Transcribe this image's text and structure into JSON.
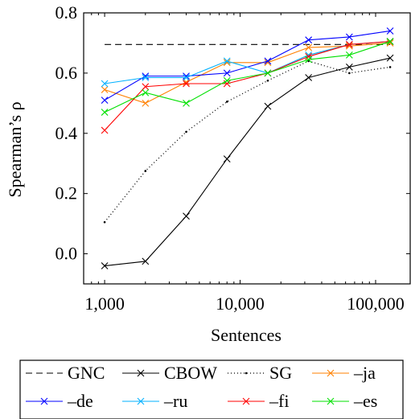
{
  "chart_data": {
    "type": "line",
    "xlabel": "Sentences",
    "ylabel": "Spearman’s ρ",
    "xscale": "log",
    "xlim": [
      700,
      180000
    ],
    "ylim": [
      -0.1,
      0.8
    ],
    "x_ticks": [
      1000,
      10000,
      100000
    ],
    "x_tick_labels": [
      "1,000",
      "10,000",
      "100,000"
    ],
    "y_ticks": [
      0,
      0.2,
      0.4,
      0.6,
      0.8
    ],
    "y_tick_labels": [
      "0.0",
      "0.2",
      "0.4",
      "0.6",
      "0.8"
    ],
    "grid": false,
    "legend_position": "bottom",
    "x": [
      1000,
      2000,
      4000,
      8000,
      16000,
      32000,
      64000,
      128000
    ],
    "series": [
      {
        "name": "GNC",
        "color": "#000000",
        "dash": "dashed",
        "marker": "none",
        "x": [
          1000,
          128000
        ],
        "values": [
          0.695,
          0.695
        ]
      },
      {
        "name": "CBOW",
        "color": "#000000",
        "dash": "solid",
        "marker": "x",
        "values": [
          -0.04,
          -0.025,
          0.125,
          0.315,
          0.49,
          0.585,
          0.62,
          0.65
        ]
      },
      {
        "name": "SG",
        "color": "#000000",
        "dash": "dotted",
        "marker": "dot",
        "values": [
          0.105,
          0.275,
          0.405,
          0.505,
          0.575,
          0.64,
          0.6,
          0.62
        ]
      },
      {
        "name": "–ja",
        "color": "#ff8000",
        "dash": "solid",
        "marker": "x",
        "values": [
          0.545,
          0.5,
          0.57,
          0.635,
          0.635,
          0.685,
          0.69,
          0.7
        ]
      },
      {
        "name": "–de",
        "color": "#0000ff",
        "dash": "solid",
        "marker": "x",
        "values": [
          0.51,
          0.59,
          0.59,
          0.6,
          0.64,
          0.71,
          0.72,
          0.74
        ]
      },
      {
        "name": "–ru",
        "color": "#00b0ff",
        "dash": "solid",
        "marker": "x",
        "values": [
          0.565,
          0.585,
          0.585,
          0.64,
          0.6,
          0.66,
          0.695,
          0.705
        ]
      },
      {
        "name": "–fi",
        "color": "#ff0000",
        "dash": "solid",
        "marker": "x",
        "values": [
          0.41,
          0.555,
          0.565,
          0.565,
          0.6,
          0.655,
          0.695,
          0.705
        ]
      },
      {
        "name": "–es",
        "color": "#00e000",
        "dash": "solid",
        "marker": "x",
        "values": [
          0.47,
          0.535,
          0.5,
          0.575,
          0.6,
          0.645,
          0.66,
          0.705
        ]
      }
    ]
  }
}
